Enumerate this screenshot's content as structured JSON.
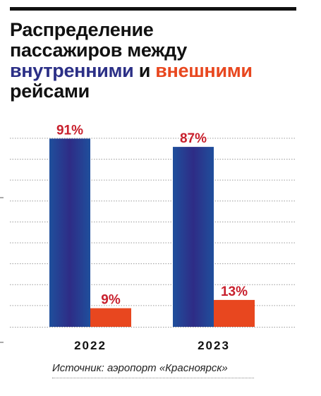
{
  "title": {
    "line1": "Распределение",
    "line2": "пассажиров между",
    "domestic_word": "внутренними",
    "conjunction": "и",
    "international_word": "внешними",
    "line4": "рейсами"
  },
  "colors": {
    "domestic": "#2b2f86",
    "international": "#e8471f",
    "value_label": "#c8202d"
  },
  "source": "Источник: аэропорт «Красноярск»",
  "chart_data": {
    "type": "bar",
    "categories": [
      "2022",
      "2023"
    ],
    "series": [
      {
        "name": "внутренними",
        "values": [
          91,
          87
        ],
        "labels": [
          "91%",
          "87%"
        ]
      },
      {
        "name": "внешними",
        "values": [
          9,
          13
        ],
        "labels": [
          "9%",
          "13%"
        ]
      }
    ],
    "ylim": [
      0,
      100
    ],
    "unit": "%",
    "grid": true,
    "legend": "in title"
  }
}
